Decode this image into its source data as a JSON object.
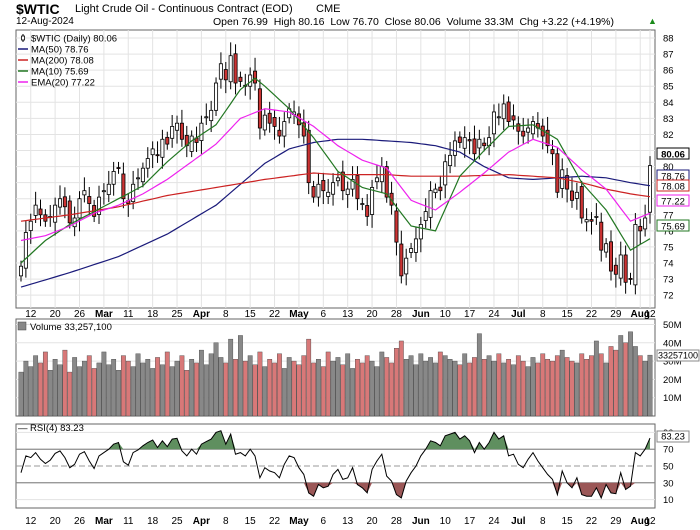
{
  "header": {
    "symbol": "$WTIC",
    "name": "Light Crude Oil - Continuous Contract (EOD)",
    "exchange": "CME",
    "date": "12-Aug-2024",
    "quote": "Open 76.99  High 80.16  Low 76.70  Close 80.06  Volume 33.3M  Chg +3.22 (+4.19%)",
    "quote_arrow": "▲"
  },
  "colors": {
    "up": "#ffffff",
    "down": "#cc3333",
    "ma50": "#1a1a7a",
    "ma200": "#cc2222",
    "ma10": "#227722",
    "ema20": "#ee22ee",
    "volume_up": "#888888",
    "volume_down": "#d87878",
    "rsi_line": "#000000",
    "rsi_overbought": "#5f8f5f",
    "rsi_oversold": "#9b5757",
    "grid": "#e3e3e3"
  },
  "chart_data": [
    {
      "type": "candlestick",
      "title": "$WTIC (Daily) 80.06",
      "y_ticks": [
        72,
        73,
        74,
        75,
        76,
        77,
        78,
        79,
        80,
        81,
        82,
        83,
        84,
        85,
        86,
        87,
        88
      ],
      "ylim": [
        71.2,
        88.5
      ],
      "x_tick_labels": [
        "12",
        "20",
        "26",
        "Mar",
        "11",
        "18",
        "25",
        "Apr",
        "8",
        "15",
        "22",
        "May",
        "6",
        "13",
        "20",
        "28",
        "Jun",
        "10",
        "17",
        "24",
        "Jul",
        "8",
        "15",
        "22",
        "29",
        "Aug",
        "12"
      ],
      "bold_ticks": [
        "Mar",
        "Apr",
        "May",
        "Jun",
        "Jul",
        "Aug"
      ],
      "price_markers": [
        {
          "label": "80.06",
          "value": 80.06,
          "style": "last"
        },
        {
          "label": "78.76",
          "value": 78.76,
          "style": "ma50"
        },
        {
          "label": "78.08",
          "value": 78.08,
          "style": "ma200"
        },
        {
          "label": "77.22",
          "value": 77.22,
          "style": "ema20"
        },
        {
          "label": "75.69",
          "value": 75.69,
          "style": "ma10"
        }
      ],
      "legend": [
        {
          "label": "$WTIC (Daily) 80.06",
          "color": "#000000",
          "kind": "candle"
        },
        {
          "label": "MA(50) 78.76",
          "color": "#1a1a7a",
          "kind": "line"
        },
        {
          "label": "MA(200) 78.08",
          "color": "#cc2222",
          "kind": "line"
        },
        {
          "label": "MA(10) 75.69",
          "color": "#227722",
          "kind": "line"
        },
        {
          "label": "EMA(20) 77.22",
          "color": "#ee22ee",
          "kind": "line"
        }
      ],
      "closes": [
        73.8,
        75.9,
        76.6,
        77.6,
        77.0,
        76.6,
        76.9,
        77.6,
        78.0,
        77.5,
        76.5,
        76.8,
        78.0,
        78.5,
        77.7,
        76.9,
        78.1,
        78.5,
        78.9,
        79.7,
        79.9,
        78.0,
        77.7,
        78.9,
        79.3,
        79.9,
        80.5,
        81.1,
        80.7,
        81.7,
        81.4,
        82.5,
        82.7,
        81.7,
        81.3,
        81.9,
        81.5,
        82.7,
        83.1,
        83.5,
        85.2,
        86.4,
        85.4,
        86.9,
        85.2,
        85.3,
        85.0,
        85.7,
        85.2,
        82.4,
        83.2,
        82.7,
        82.5,
        81.9,
        82.8,
        83.6,
        83.4,
        82.6,
        81.9,
        79.0,
        78.1,
        78.9,
        78.5,
        78.4,
        79.0,
        79.3,
        78.5,
        78.6,
        79.2,
        78.0,
        77.7,
        76.9,
        78.7,
        79.3,
        80.0,
        78.1,
        77.6,
        75.3,
        73.2,
        74.3,
        74.9,
        75.5,
        76.4,
        77.2,
        78.5,
        78.6,
        78.5,
        80.3,
        80.7,
        81.6,
        81.5,
        81.8,
        81.6,
        80.8,
        81.7,
        81.3,
        81.8,
        83.4,
        83.1,
        83.9,
        82.8,
        82.9,
        82.2,
        81.9,
        82.4,
        82.8,
        82.4,
        81.9,
        81.3,
        80.8,
        78.4,
        79.8,
        78.6,
        77.9,
        78.4,
        76.8,
        76.7,
        76.6,
        76.9,
        74.8,
        75.2,
        73.5,
        73.3,
        74.5,
        72.8,
        73.0,
        76.4,
        76.0,
        76.8,
        80.06
      ],
      "series": [
        {
          "name": "MA(50)",
          "last": 78.76,
          "points": [
            [
              0,
              72.5
            ],
            [
              10,
              73.4
            ],
            [
              20,
              74.4
            ],
            [
              30,
              75.8
            ],
            [
              40,
              77.6
            ],
            [
              45,
              78.9
            ],
            [
              50,
              80.2
            ],
            [
              55,
              81.1
            ],
            [
              60,
              81.5
            ],
            [
              65,
              81.7
            ],
            [
              70,
              81.7
            ],
            [
              80,
              81.5
            ],
            [
              85,
              81.3
            ],
            [
              90,
              80.9
            ],
            [
              95,
              80.0
            ],
            [
              100,
              79.3
            ],
            [
              105,
              79.2
            ],
            [
              110,
              79.3
            ],
            [
              115,
              79.4
            ],
            [
              120,
              79.3
            ],
            [
              125,
              79.0
            ],
            [
              130,
              78.76
            ]
          ]
        },
        {
          "name": "MA(200)",
          "last": 78.08,
          "points": [
            [
              0,
              76.6
            ],
            [
              10,
              77.0
            ],
            [
              20,
              77.5
            ],
            [
              30,
              78.2
            ],
            [
              40,
              78.7
            ],
            [
              50,
              79.2
            ],
            [
              55,
              79.4
            ],
            [
              60,
              79.6
            ],
            [
              65,
              79.5
            ],
            [
              70,
              79.5
            ],
            [
              75,
              79.5
            ],
            [
              80,
              79.4
            ],
            [
              90,
              79.4
            ],
            [
              100,
              79.5
            ],
            [
              105,
              79.4
            ],
            [
              110,
              79.3
            ],
            [
              115,
              79.0
            ],
            [
              120,
              78.6
            ],
            [
              125,
              78.3
            ],
            [
              130,
              78.08
            ]
          ]
        },
        {
          "name": "MA(10)",
          "last": 75.69,
          "points": [
            [
              0,
              74.0
            ],
            [
              5,
              75.4
            ],
            [
              10,
              76.4
            ],
            [
              15,
              77.2
            ],
            [
              20,
              78.0
            ],
            [
              25,
              78.8
            ],
            [
              30,
              80.3
            ],
            [
              35,
              81.6
            ],
            [
              40,
              82.6
            ],
            [
              45,
              84.8
            ],
            [
              48,
              85.5
            ],
            [
              50,
              85.0
            ],
            [
              55,
              83.6
            ],
            [
              60,
              81.8
            ],
            [
              65,
              79.7
            ],
            [
              70,
              78.7
            ],
            [
              75,
              78.3
            ],
            [
              80,
              76.3
            ],
            [
              85,
              76.0
            ],
            [
              90,
              79.4
            ],
            [
              95,
              81.0
            ],
            [
              100,
              82.5
            ],
            [
              105,
              82.6
            ],
            [
              110,
              81.7
            ],
            [
              115,
              79.0
            ],
            [
              120,
              77.3
            ],
            [
              125,
              74.8
            ],
            [
              130,
              75.69
            ]
          ]
        },
        {
          "name": "EMA(20)",
          "last": 77.22,
          "points": [
            [
              0,
              75.4
            ],
            [
              5,
              75.7
            ],
            [
              10,
              76.3
            ],
            [
              15,
              77.1
            ],
            [
              20,
              77.6
            ],
            [
              25,
              78.3
            ],
            [
              30,
              79.2
            ],
            [
              35,
              80.3
            ],
            [
              40,
              81.4
            ],
            [
              45,
              83.0
            ],
            [
              50,
              83.6
            ],
            [
              55,
              83.4
            ],
            [
              60,
              82.5
            ],
            [
              65,
              81.3
            ],
            [
              70,
              80.4
            ],
            [
              75,
              79.9
            ],
            [
              80,
              77.9
            ],
            [
              85,
              77.3
            ],
            [
              90,
              78.4
            ],
            [
              95,
              79.6
            ],
            [
              100,
              80.9
            ],
            [
              105,
              81.7
            ],
            [
              110,
              81.2
            ],
            [
              115,
              79.8
            ],
            [
              120,
              78.6
            ],
            [
              125,
              76.6
            ],
            [
              130,
              77.22
            ]
          ]
        }
      ]
    },
    {
      "type": "bar",
      "title": "Volume 33,257,100",
      "y_ticks_labels": [
        "10M",
        "20M",
        "30M",
        "40M",
        "50M"
      ],
      "y_ticks": [
        10,
        20,
        30,
        40,
        50
      ],
      "ylim": [
        0,
        53
      ],
      "units": "M",
      "last_label": "33257100",
      "values_millions": [
        24,
        30,
        27,
        33,
        29,
        35,
        25,
        31,
        28,
        36,
        24,
        32,
        27,
        30,
        33,
        26,
        29,
        35,
        28,
        31,
        25,
        33,
        30,
        27,
        34,
        29,
        31,
        26,
        32,
        28,
        35,
        27,
        30,
        33,
        25,
        31,
        29,
        36,
        28,
        34,
        40,
        32,
        29,
        42,
        31,
        44,
        30,
        33,
        28,
        35,
        27,
        31,
        29,
        34,
        26,
        32,
        30,
        28,
        33,
        42,
        29,
        31,
        27,
        35,
        30,
        32,
        28,
        34,
        26,
        31,
        29,
        33,
        30,
        27,
        35,
        32,
        29,
        37,
        41,
        31,
        33,
        28,
        34,
        30,
        32,
        29,
        35,
        33,
        31,
        30,
        28,
        34,
        29,
        32,
        45,
        31,
        33,
        30,
        34,
        29,
        31,
        28,
        33,
        30,
        27,
        32,
        29,
        34,
        31,
        30,
        33,
        36,
        32,
        30,
        29,
        34,
        31,
        33,
        41,
        34,
        29,
        38,
        36,
        44,
        40,
        46,
        38,
        33,
        30,
        33.26
      ]
    },
    {
      "type": "line",
      "title": "RSI(4) 83.23",
      "y_ticks": [
        10,
        30,
        50,
        70,
        90
      ],
      "ylim": [
        0,
        100
      ],
      "overbought": 70,
      "oversold": 30,
      "last_label": "83.23",
      "values": [
        42,
        62,
        60,
        66,
        58,
        53,
        57,
        65,
        68,
        60,
        48,
        52,
        64,
        67,
        56,
        47,
        62,
        66,
        70,
        76,
        78,
        55,
        51,
        66,
        69,
        74,
        78,
        81,
        72,
        80,
        73,
        82,
        83,
        68,
        62,
        70,
        64,
        76,
        79,
        82,
        90,
        92,
        76,
        88,
        64,
        66,
        62,
        70,
        62,
        36,
        48,
        44,
        42,
        36,
        52,
        62,
        60,
        48,
        40,
        18,
        14,
        28,
        24,
        26,
        40,
        46,
        34,
        36,
        48,
        28,
        24,
        18,
        46,
        56,
        64,
        38,
        32,
        16,
        12,
        32,
        42,
        50,
        62,
        70,
        80,
        78,
        74,
        86,
        88,
        90,
        82,
        86,
        80,
        66,
        78,
        70,
        78,
        90,
        82,
        86,
        62,
        64,
        52,
        48,
        58,
        66,
        56,
        48,
        40,
        34,
        16,
        44,
        30,
        24,
        36,
        16,
        14,
        14,
        24,
        12,
        28,
        18,
        17,
        42,
        22,
        26,
        66,
        62,
        70,
        83.23
      ]
    }
  ]
}
